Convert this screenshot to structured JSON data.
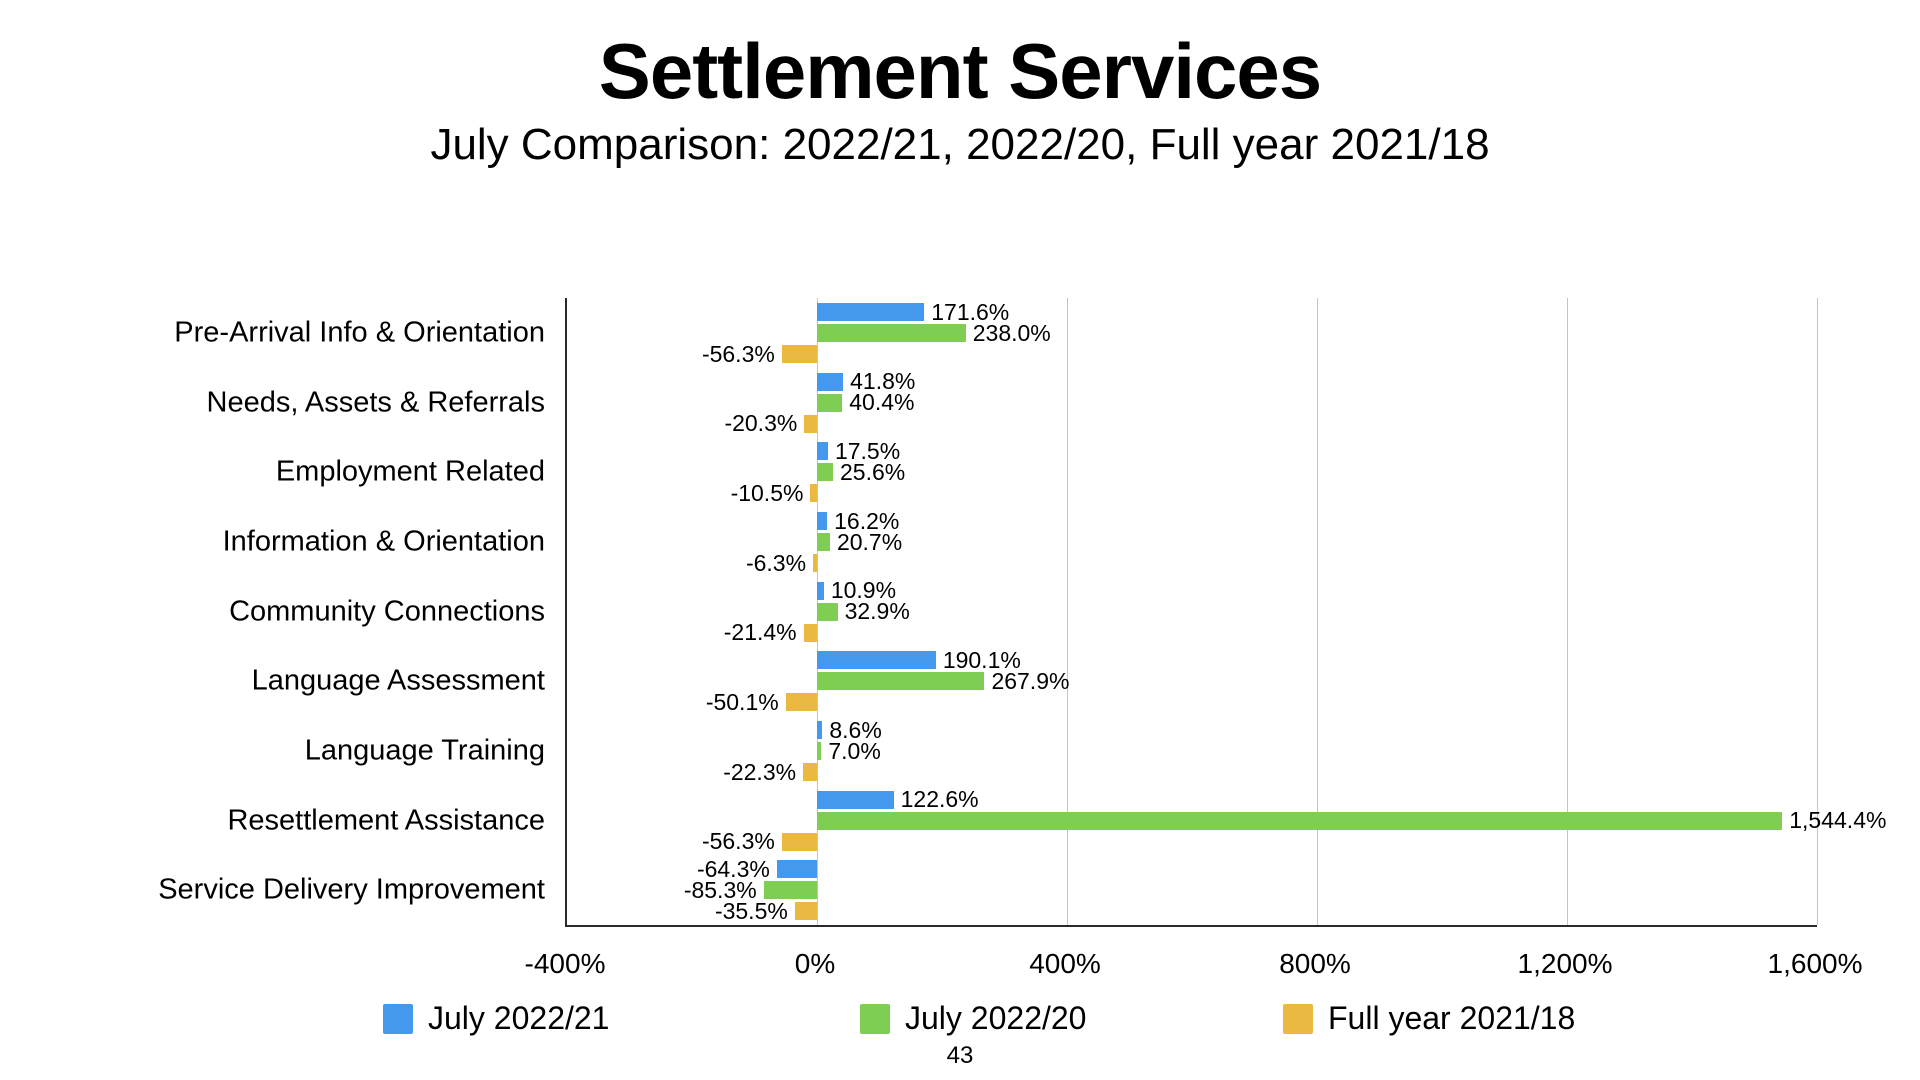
{
  "title": "Settlement Services",
  "subtitle": "July Comparison: 2022/21, 2022/20, Full year 2021/18",
  "page_number": "43",
  "chart_data": {
    "type": "bar",
    "orientation": "horizontal",
    "title": "Settlement Services",
    "subtitle": "July Comparison: 2022/21, 2022/20, Full year 2021/18",
    "grid": "vertical-gridlines-on",
    "legend_position": "bottom",
    "xlim": [
      -400,
      1600
    ],
    "ticks": [
      {
        "value": -400,
        "label": "-400%"
      },
      {
        "value": 0,
        "label": "0%"
      },
      {
        "value": 400,
        "label": "400%"
      },
      {
        "value": 800,
        "label": "800%"
      },
      {
        "value": 1200,
        "label": "1,200%"
      },
      {
        "value": 1600,
        "label": "1,600%"
      }
    ],
    "categories": [
      "Pre-Arrival Info & Orientation",
      "Needs, Assets & Referrals",
      "Employment Related",
      "Information & Orientation",
      "Community Connections",
      "Language Assessment",
      "Language Training",
      "Resettlement Assistance",
      "Service Delivery Improvement"
    ],
    "series": [
      {
        "name": "July 2022/21",
        "color": "#4498EE",
        "values": [
          171.6,
          41.8,
          17.5,
          16.2,
          10.9,
          190.1,
          8.6,
          122.6,
          -64.3
        ],
        "labels": [
          "171.6%",
          "41.8%",
          "17.5%",
          "16.2%",
          "10.9%",
          "190.1%",
          "8.6%",
          "122.6%",
          "-64.3%"
        ]
      },
      {
        "name": "July 2022/20",
        "color": "#7DCE52",
        "values": [
          238.0,
          40.4,
          25.6,
          20.7,
          32.9,
          267.9,
          7.0,
          1544.4,
          -85.3
        ],
        "labels": [
          "238.0%",
          "40.4%",
          "25.6%",
          "20.7%",
          "32.9%",
          "267.9%",
          "7.0%",
          "1,544.4%",
          "-85.3%"
        ]
      },
      {
        "name": "Full year 2021/18",
        "color": "#EBB842",
        "values": [
          -56.3,
          -20.3,
          -10.5,
          -6.3,
          -21.4,
          -50.1,
          -22.3,
          -56.3,
          -35.5
        ],
        "labels": [
          "-56.3%",
          "-20.3%",
          "-10.5%",
          "-6.3%",
          "-21.4%",
          "-50.1%",
          "-22.3%",
          "-56.3%",
          "-35.5%"
        ]
      }
    ]
  }
}
